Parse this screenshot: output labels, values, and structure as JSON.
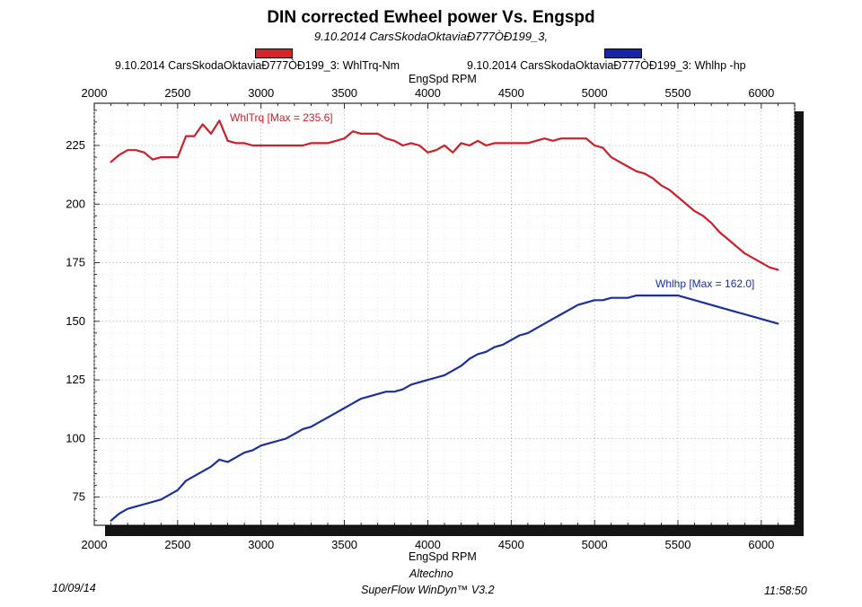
{
  "header": {
    "title": "DIN corrected Ewheel power Vs. Engspd",
    "subtitle": "9.10.2014 CarsSkodaOktaviaÐ777ÒÐ199_3,"
  },
  "legend": {
    "torque_label": "9.10.2014 CarsSkodaOktaviaÐ777ÒÐ199_3: WhlTrq-Nm",
    "power_label": "9.10.2014 CarsSkodaOktaviaÐ777ÒÐ199_3: Whlhp -hp"
  },
  "footer": {
    "date": "10/09/14",
    "vendor": "Altechno",
    "software": "SuperFlow WinDyn™ V3.2",
    "time": "11:58:50"
  },
  "chart_data": {
    "type": "line",
    "title": "DIN corrected Ewheel power Vs. Engspd",
    "xlabel": "EngSpd RPM",
    "xlim": [
      2000,
      6200
    ],
    "ylim": [
      63,
      243
    ],
    "x_ticks": [
      2000,
      2500,
      3000,
      3500,
      4000,
      4500,
      5000,
      5500,
      6000
    ],
    "y_ticks": [
      75,
      100,
      125,
      150,
      175,
      200,
      225
    ],
    "grid": true,
    "colors": {
      "torque": "#cc1f2b",
      "power": "#1a2fa0"
    },
    "annotations": {
      "torque": "WhlTrq [Max = 235.6]",
      "power": "Whlhp  [Max = 162.0]"
    },
    "series": [
      {
        "name": "WhlTrq-Nm",
        "x": [
          2100,
          2150,
          2200,
          2250,
          2300,
          2350,
          2400,
          2450,
          2500,
          2550,
          2600,
          2650,
          2700,
          2750,
          2800,
          2850,
          2900,
          2950,
          3000,
          3050,
          3100,
          3150,
          3200,
          3250,
          3300,
          3350,
          3400,
          3450,
          3500,
          3550,
          3600,
          3650,
          3700,
          3750,
          3800,
          3850,
          3900,
          3950,
          4000,
          4050,
          4100,
          4150,
          4200,
          4250,
          4300,
          4350,
          4400,
          4450,
          4500,
          4550,
          4600,
          4650,
          4700,
          4750,
          4800,
          4850,
          4900,
          4950,
          5000,
          5050,
          5100,
          5150,
          5200,
          5250,
          5300,
          5350,
          5400,
          5450,
          5500,
          5550,
          5600,
          5650,
          5700,
          5750,
          5800,
          5850,
          5900,
          5950,
          6000,
          6050,
          6100
        ],
        "values": [
          218,
          221,
          223,
          223,
          222,
          219,
          220,
          220,
          220,
          229,
          229,
          234,
          230,
          235.6,
          227,
          226,
          226,
          225,
          225,
          225,
          225,
          225,
          225,
          225,
          226,
          226,
          226,
          227,
          228,
          231,
          230,
          230,
          230,
          228,
          227,
          225,
          226,
          225,
          222,
          223,
          225,
          222,
          226,
          225,
          227,
          225,
          226,
          226,
          226,
          226,
          226,
          227,
          228,
          227,
          228,
          228,
          228,
          228,
          225,
          224,
          220,
          218,
          216,
          214,
          213,
          211,
          208,
          206,
          203,
          200,
          197,
          195,
          192,
          188,
          185,
          182,
          179,
          177,
          175,
          173,
          172
        ]
      },
      {
        "name": "Whlhp-hp",
        "x": [
          2100,
          2150,
          2200,
          2250,
          2300,
          2350,
          2400,
          2450,
          2500,
          2550,
          2600,
          2650,
          2700,
          2750,
          2800,
          2850,
          2900,
          2950,
          3000,
          3050,
          3100,
          3150,
          3200,
          3250,
          3300,
          3350,
          3400,
          3450,
          3500,
          3550,
          3600,
          3650,
          3700,
          3750,
          3800,
          3850,
          3900,
          3950,
          4000,
          4050,
          4100,
          4150,
          4200,
          4250,
          4300,
          4350,
          4400,
          4450,
          4500,
          4550,
          4600,
          4650,
          4700,
          4750,
          4800,
          4850,
          4900,
          4950,
          5000,
          5050,
          5100,
          5150,
          5200,
          5250,
          5300,
          5350,
          5400,
          5450,
          5500,
          5550,
          5600,
          5650,
          5700,
          5750,
          5800,
          5850,
          5900,
          5950,
          6000,
          6050,
          6100
        ],
        "values": [
          65,
          68,
          70,
          71,
          72,
          73,
          74,
          76,
          78,
          82,
          84,
          86,
          88,
          91,
          90,
          92,
          94,
          95,
          97,
          98,
          99,
          100,
          102,
          104,
          105,
          107,
          109,
          111,
          113,
          115,
          117,
          118,
          119,
          120,
          120,
          121,
          123,
          124,
          125,
          126,
          127,
          129,
          131,
          134,
          136,
          137,
          139,
          140,
          142,
          144,
          145,
          147,
          149,
          151,
          153,
          155,
          157,
          158,
          159,
          159,
          160,
          160,
          160,
          161,
          161,
          161,
          161,
          161,
          161,
          160,
          159,
          158,
          157,
          156,
          155,
          154,
          153,
          152,
          151,
          150,
          149
        ]
      }
    ]
  }
}
